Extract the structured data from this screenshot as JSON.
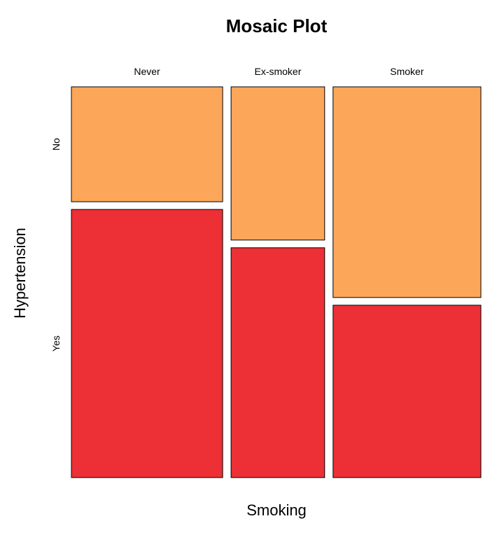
{
  "chart_data": {
    "type": "mosaic",
    "title": "Mosaic Plot",
    "xlabel": "Smoking",
    "ylabel": "Hypertension",
    "x_categories": [
      "Never",
      "Ex-smoker",
      "Smoker"
    ],
    "y_categories": [
      "No",
      "Yes"
    ],
    "column_widths": [
      0.354,
      0.219,
      0.346
    ],
    "conditional_proportions": [
      {
        "category": "Never",
        "No": 0.3,
        "Yes": 0.7
      },
      {
        "category": "Ex-smoker",
        "No": 0.4,
        "Yes": 0.6
      },
      {
        "category": "Smoker",
        "No": 0.55,
        "Yes": 0.45
      }
    ],
    "colors": {
      "No": "#fca65a",
      "Yes": "#ec3036"
    },
    "legend": "none",
    "grid": false
  }
}
